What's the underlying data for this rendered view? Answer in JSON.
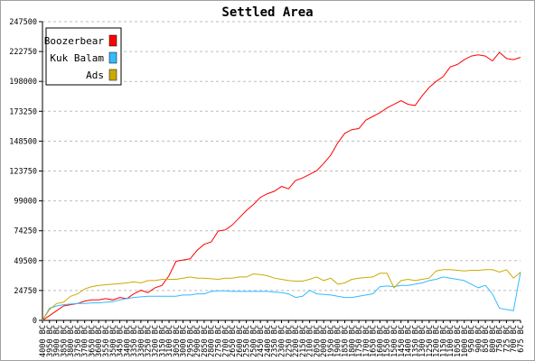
{
  "chart_data": {
    "type": "line",
    "title": "Settled Area",
    "ylim": [
      0,
      247500
    ],
    "yticks": [
      0,
      24750,
      49500,
      74250,
      99000,
      123750,
      148500,
      173250,
      198000,
      222750,
      247500
    ],
    "grid": true,
    "legend_position": "top-left",
    "x": [
      "4000 BC",
      "3950 BC",
      "3900 BC",
      "3850 BC",
      "3800 BC",
      "3750 BC",
      "3700 BC",
      "3650 BC",
      "3600 BC",
      "3550 BC",
      "3500 BC",
      "3450 BC",
      "3400 BC",
      "3350 BC",
      "3300 BC",
      "3250 BC",
      "3200 BC",
      "3150 BC",
      "3100 BC",
      "3050 BC",
      "3000 BC",
      "2950 BC",
      "2900 BC",
      "2850 BC",
      "2800 BC",
      "2750 BC",
      "2700 BC",
      "2650 BC",
      "2600 BC",
      "2550 BC",
      "2500 BC",
      "2450 BC",
      "2400 BC",
      "2350 BC",
      "2300 BC",
      "2250 BC",
      "2200 BC",
      "2150 BC",
      "2100 BC",
      "2050 BC",
      "2000 BC",
      "1950 BC",
      "1900 BC",
      "1850 BC",
      "1800 BC",
      "1750 BC",
      "1700 BC",
      "1650 BC",
      "1600 BC",
      "1550 BC",
      "1500 BC",
      "1450 BC",
      "1400 BC",
      "1350 BC",
      "1300 BC",
      "1250 BC",
      "1200 BC",
      "1150 BC",
      "1100 BC",
      "1050 BC",
      "1000 BC",
      "950 BC",
      "900 BC",
      "850 BC",
      "800 BC",
      "750 BC",
      "725 BC",
      "700 BC",
      "675 BC"
    ],
    "series": [
      {
        "name": "Boozerbear",
        "color": "#ff0000",
        "values": [
          0,
          4000,
          8000,
          12000,
          13000,
          14000,
          16000,
          17000,
          17000,
          18000,
          17000,
          19000,
          18000,
          22000,
          25000,
          23000,
          27000,
          29000,
          37000,
          49000,
          50000,
          51000,
          58000,
          63000,
          65000,
          74000,
          75000,
          79000,
          85000,
          91000,
          96000,
          102000,
          105000,
          107000,
          111000,
          109000,
          116000,
          118000,
          121000,
          124000,
          130000,
          137000,
          147000,
          155000,
          158000,
          159000,
          166000,
          169000,
          172000,
          176000,
          179000,
          182000,
          179000,
          178000,
          186000,
          193000,
          198000,
          202000,
          210000,
          212000,
          216000,
          219000,
          220000,
          219000,
          215000,
          222000,
          217000,
          216000,
          218000
        ]
      },
      {
        "name": "Kuk Balam",
        "color": "#33bbff",
        "values": [
          0,
          10000,
          12000,
          13000,
          13500,
          14000,
          14000,
          14500,
          14500,
          15000,
          15500,
          17000,
          18000,
          19000,
          19500,
          20000,
          20000,
          20000,
          20000,
          20000,
          21000,
          21000,
          22000,
          22000,
          24000,
          24500,
          24500,
          24000,
          24000,
          24000,
          24000,
          24000,
          24000,
          23500,
          23000,
          22000,
          19000,
          20000,
          25000,
          22000,
          21500,
          21000,
          20000,
          19000,
          19000,
          20000,
          21000,
          22000,
          28000,
          28500,
          28000,
          29000,
          29000,
          30000,
          31000,
          33000,
          34000,
          36000,
          35000,
          34000,
          33000,
          30000,
          27000,
          29000,
          22000,
          10000,
          9000,
          8000,
          40000
        ]
      },
      {
        "name": "Ads",
        "color": "#ccaa00",
        "values": [
          0,
          9000,
          14000,
          15000,
          20000,
          22000,
          26000,
          28000,
          29000,
          29500,
          30000,
          30500,
          31000,
          32000,
          31000,
          33000,
          33000,
          34000,
          34000,
          34000,
          35000,
          36000,
          35000,
          35000,
          34500,
          34000,
          35000,
          35000,
          36000,
          36000,
          38500,
          38000,
          37000,
          35000,
          34000,
          33000,
          32500,
          32500,
          34000,
          36000,
          33000,
          35000,
          30000,
          31000,
          34000,
          35000,
          35500,
          36000,
          39000,
          39000,
          27000,
          33000,
          34000,
          33000,
          34000,
          35000,
          41000,
          42000,
          42000,
          41500,
          41000,
          41500,
          41500,
          42000,
          42000,
          40000,
          42000,
          35000,
          40000
        ]
      }
    ]
  }
}
